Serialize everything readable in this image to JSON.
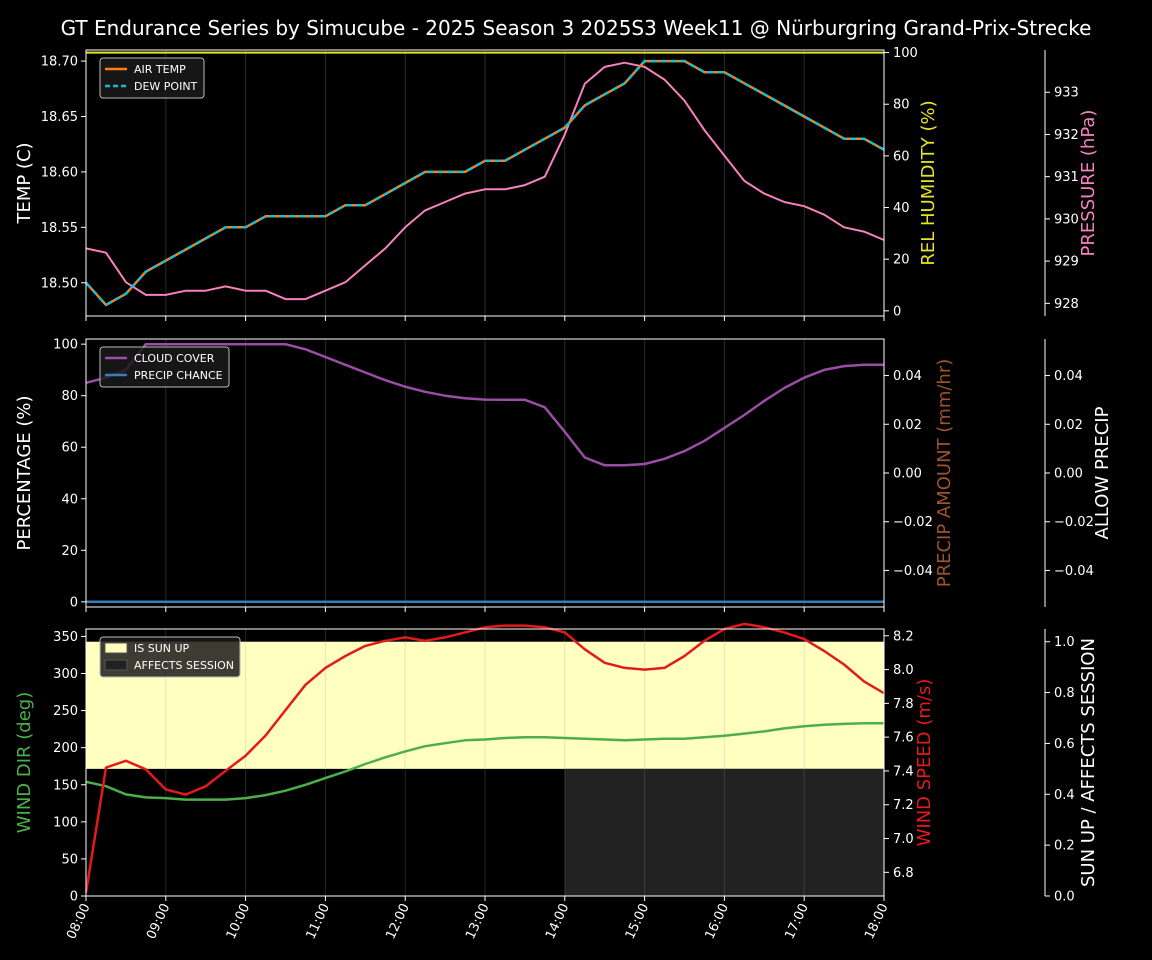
{
  "title": "GT Endurance Series by Simucube - 2025 Season 3 2025S3 Week11 @ Nürburgring Grand-Prix-Strecke",
  "x_ticks": [
    "08:00",
    "09:00",
    "10:00",
    "11:00",
    "12:00",
    "13:00",
    "14:00",
    "15:00",
    "16:00",
    "17:00",
    "18:00"
  ],
  "colors": {
    "background": "#000000",
    "axis": "#ffffff",
    "air_temp": "#ff7f0e",
    "dew_point": "#17becf",
    "humidity": "#e3e32a",
    "pressure": "#f781bf",
    "cloud": "#984ea3",
    "precip": "#377eb8",
    "precip_amount_label": "#a0522d",
    "wind_dir": "#4daf4a",
    "wind_speed": "#e41a1c",
    "sun_up": "#ffffc0",
    "affects": "#222222"
  },
  "chart_data": [
    {
      "type": "line",
      "panel": "weather-top",
      "x_range": [
        "08:00",
        "18:00"
      ],
      "x": [
        "08:00",
        "08:15",
        "08:30",
        "08:45",
        "09:00",
        "09:15",
        "09:30",
        "09:45",
        "10:00",
        "10:15",
        "10:30",
        "10:45",
        "11:00",
        "11:15",
        "11:30",
        "11:45",
        "12:00",
        "12:15",
        "12:30",
        "12:45",
        "13:00",
        "13:15",
        "13:30",
        "13:45",
        "14:00",
        "14:15",
        "14:30",
        "14:45",
        "15:00",
        "15:15",
        "15:30",
        "15:45",
        "16:00",
        "16:15",
        "16:30",
        "16:45",
        "17:00",
        "17:15",
        "17:30",
        "17:45",
        "18:00"
      ],
      "ylabel": "TEMP (C)",
      "ylim": [
        18.47,
        18.71
      ],
      "y_ticks": [
        "18.50",
        "18.55",
        "18.60",
        "18.65",
        "18.70"
      ],
      "y2label": "REL HUMIDITY (%)",
      "y2lim": [
        -2,
        101
      ],
      "y2_ticks": [
        "0",
        "20",
        "40",
        "60",
        "80",
        "100"
      ],
      "y3label": "PRESSURE (hPa)",
      "y3lim": [
        927.7,
        934.0
      ],
      "y3_ticks": [
        "928",
        "929",
        "930",
        "931",
        "932",
        "933"
      ],
      "legend": "top-left",
      "series": [
        {
          "name": "AIR TEMP",
          "axis": "left",
          "style": "solid",
          "values": [
            18.5,
            18.48,
            18.49,
            18.51,
            18.52,
            18.53,
            18.54,
            18.55,
            18.55,
            18.56,
            18.56,
            18.56,
            18.56,
            18.57,
            18.57,
            18.58,
            18.59,
            18.6,
            18.6,
            18.6,
            18.61,
            18.61,
            18.62,
            18.63,
            18.64,
            18.66,
            18.67,
            18.68,
            18.7,
            18.7,
            18.7,
            18.69,
            18.69,
            18.68,
            18.67,
            18.66,
            18.65,
            18.64,
            18.63,
            18.63,
            18.62
          ]
        },
        {
          "name": "DEW POINT",
          "axis": "left",
          "style": "dashed",
          "values": [
            18.5,
            18.48,
            18.49,
            18.51,
            18.52,
            18.53,
            18.54,
            18.55,
            18.55,
            18.56,
            18.56,
            18.56,
            18.56,
            18.57,
            18.57,
            18.58,
            18.59,
            18.6,
            18.6,
            18.6,
            18.61,
            18.61,
            18.62,
            18.63,
            18.64,
            18.66,
            18.67,
            18.68,
            18.7,
            18.7,
            18.7,
            18.69,
            18.69,
            18.68,
            18.67,
            18.66,
            18.65,
            18.64,
            18.63,
            18.63,
            18.62
          ]
        },
        {
          "name": "REL HUMIDITY",
          "axis": "right",
          "values": [
            100,
            100,
            100,
            100,
            100,
            100,
            100,
            100,
            100,
            100,
            100,
            100,
            100,
            100,
            100,
            100,
            100,
            100,
            100,
            100,
            100,
            100,
            100,
            100,
            100,
            100,
            100,
            100,
            100,
            100,
            100,
            100,
            100,
            100,
            100,
            100,
            100,
            100,
            100,
            100,
            100
          ]
        },
        {
          "name": "PRESSURE",
          "axis": "right2",
          "values": [
            929.3,
            929.2,
            928.5,
            928.2,
            928.2,
            928.3,
            928.3,
            928.4,
            928.3,
            928.3,
            928.1,
            928.1,
            928.3,
            928.5,
            928.9,
            929.3,
            929.8,
            930.2,
            930.4,
            930.6,
            930.7,
            930.7,
            930.8,
            931.0,
            932.0,
            933.2,
            933.6,
            933.7,
            933.6,
            933.3,
            932.8,
            932.1,
            931.5,
            930.9,
            930.6,
            930.4,
            930.3,
            930.1,
            929.8,
            929.7,
            929.5
          ]
        }
      ]
    },
    {
      "type": "line",
      "panel": "clouds-middle",
      "x_range": [
        "08:00",
        "18:00"
      ],
      "x": [
        "08:00",
        "08:15",
        "08:30",
        "08:45",
        "09:00",
        "09:15",
        "09:30",
        "09:45",
        "10:00",
        "10:15",
        "10:30",
        "10:45",
        "11:00",
        "11:15",
        "11:30",
        "11:45",
        "12:00",
        "12:15",
        "12:30",
        "12:45",
        "13:00",
        "13:15",
        "13:30",
        "13:45",
        "14:00",
        "14:15",
        "14:30",
        "14:45",
        "15:00",
        "15:15",
        "15:30",
        "15:45",
        "16:00",
        "16:15",
        "16:30",
        "16:45",
        "17:00",
        "17:15",
        "17:30",
        "17:45",
        "18:00"
      ],
      "ylabel": "PERCENTAGE (%)",
      "ylim": [
        -2,
        102
      ],
      "y_ticks": [
        "0",
        "20",
        "40",
        "60",
        "80",
        "100"
      ],
      "y2label": "PRECIP AMOUNT (mm/hr)",
      "y2lim": [
        -0.055,
        0.055
      ],
      "y2_ticks": [
        "−0.04",
        "−0.02",
        "0.00",
        "0.02",
        "0.04"
      ],
      "y3label": "ALLOW PRECIP",
      "y3lim": [
        -0.055,
        0.055
      ],
      "y3_ticks": [
        "−0.04",
        "−0.02",
        "0.00",
        "0.02",
        "0.04"
      ],
      "legend": "top-left",
      "series": [
        {
          "name": "CLOUD COVER",
          "values": [
            85,
            87,
            90,
            100,
            100,
            100,
            100,
            100,
            100,
            100,
            100,
            98,
            95,
            92,
            89,
            86,
            83.5,
            81.5,
            80,
            79,
            78.5,
            78.4,
            78.4,
            75.5,
            66,
            56,
            53,
            53,
            53.5,
            55.5,
            58.5,
            62.5,
            67.5,
            72.5,
            78,
            83,
            87,
            90,
            91.5,
            92,
            92
          ]
        },
        {
          "name": "PRECIP CHANCE",
          "values": [
            0,
            0,
            0,
            0,
            0,
            0,
            0,
            0,
            0,
            0,
            0,
            0,
            0,
            0,
            0,
            0,
            0,
            0,
            0,
            0,
            0,
            0,
            0,
            0,
            0,
            0,
            0,
            0,
            0,
            0,
            0,
            0,
            0,
            0,
            0,
            0,
            0,
            0,
            0,
            0,
            0
          ]
        }
      ]
    },
    {
      "type": "line",
      "panel": "wind-bottom",
      "x_range": [
        "08:00",
        "18:00"
      ],
      "x": [
        "08:00",
        "08:15",
        "08:30",
        "08:45",
        "09:00",
        "09:15",
        "09:30",
        "09:45",
        "10:00",
        "10:15",
        "10:30",
        "10:45",
        "11:00",
        "11:15",
        "11:30",
        "11:45",
        "12:00",
        "12:15",
        "12:30",
        "12:45",
        "13:00",
        "13:15",
        "13:30",
        "13:45",
        "14:00",
        "14:15",
        "14:30",
        "14:45",
        "15:00",
        "15:15",
        "15:30",
        "15:45",
        "16:00",
        "16:15",
        "16:30",
        "16:45",
        "17:00",
        "17:15",
        "17:30",
        "17:45",
        "18:00"
      ],
      "ylabel": "WIND DIR (deg)",
      "ylim": [
        0,
        360
      ],
      "y_ticks": [
        "0",
        "50",
        "100",
        "150",
        "200",
        "250",
        "300",
        "350"
      ],
      "y2label": "WIND SPEED (m/s)",
      "y2lim": [
        6.66,
        8.24
      ],
      "y2_ticks": [
        "6.8",
        "7.0",
        "7.2",
        "7.4",
        "7.6",
        "7.8",
        "8.0",
        "8.2"
      ],
      "y3label": "SUN UP / AFFECTS SESSION",
      "y3lim": [
        0.0,
        1.05
      ],
      "y3_ticks": [
        "0.0",
        "0.2",
        "0.4",
        "0.6",
        "0.8",
        "1.0"
      ],
      "legend": "top-left",
      "regions": [
        {
          "name": "IS SUN UP",
          "x_start": "08:00",
          "x_end": "18:00",
          "y3_from": 0.5,
          "y3_to": 1.0
        },
        {
          "name": "AFFECTS SESSION",
          "x_start": "14:00",
          "x_end": "18:00",
          "y3_from": 0.0,
          "y3_to": 0.5
        }
      ],
      "series": [
        {
          "name": "WIND DIR",
          "axis": "left",
          "values": [
            154,
            148,
            137,
            133,
            132,
            130,
            130,
            130,
            132,
            136,
            142,
            150,
            159,
            168,
            178,
            187,
            195,
            202,
            206,
            210,
            211,
            213,
            214,
            214,
            213,
            212,
            211,
            210,
            211,
            212,
            212,
            214,
            216,
            219,
            222,
            226,
            229,
            231,
            232,
            233,
            233
          ]
        },
        {
          "name": "WIND SPEED",
          "axis": "right",
          "values": [
            6.68,
            7.42,
            7.46,
            7.41,
            7.29,
            7.26,
            7.31,
            7.4,
            7.49,
            7.61,
            7.76,
            7.91,
            8.01,
            8.08,
            8.14,
            8.17,
            8.19,
            8.17,
            8.19,
            8.22,
            8.25,
            8.26,
            8.26,
            8.25,
            8.22,
            8.12,
            8.04,
            8.01,
            8.0,
            8.01,
            8.08,
            8.17,
            8.24,
            8.27,
            8.25,
            8.22,
            8.18,
            8.11,
            8.03,
            7.93,
            7.86
          ]
        }
      ]
    }
  ]
}
